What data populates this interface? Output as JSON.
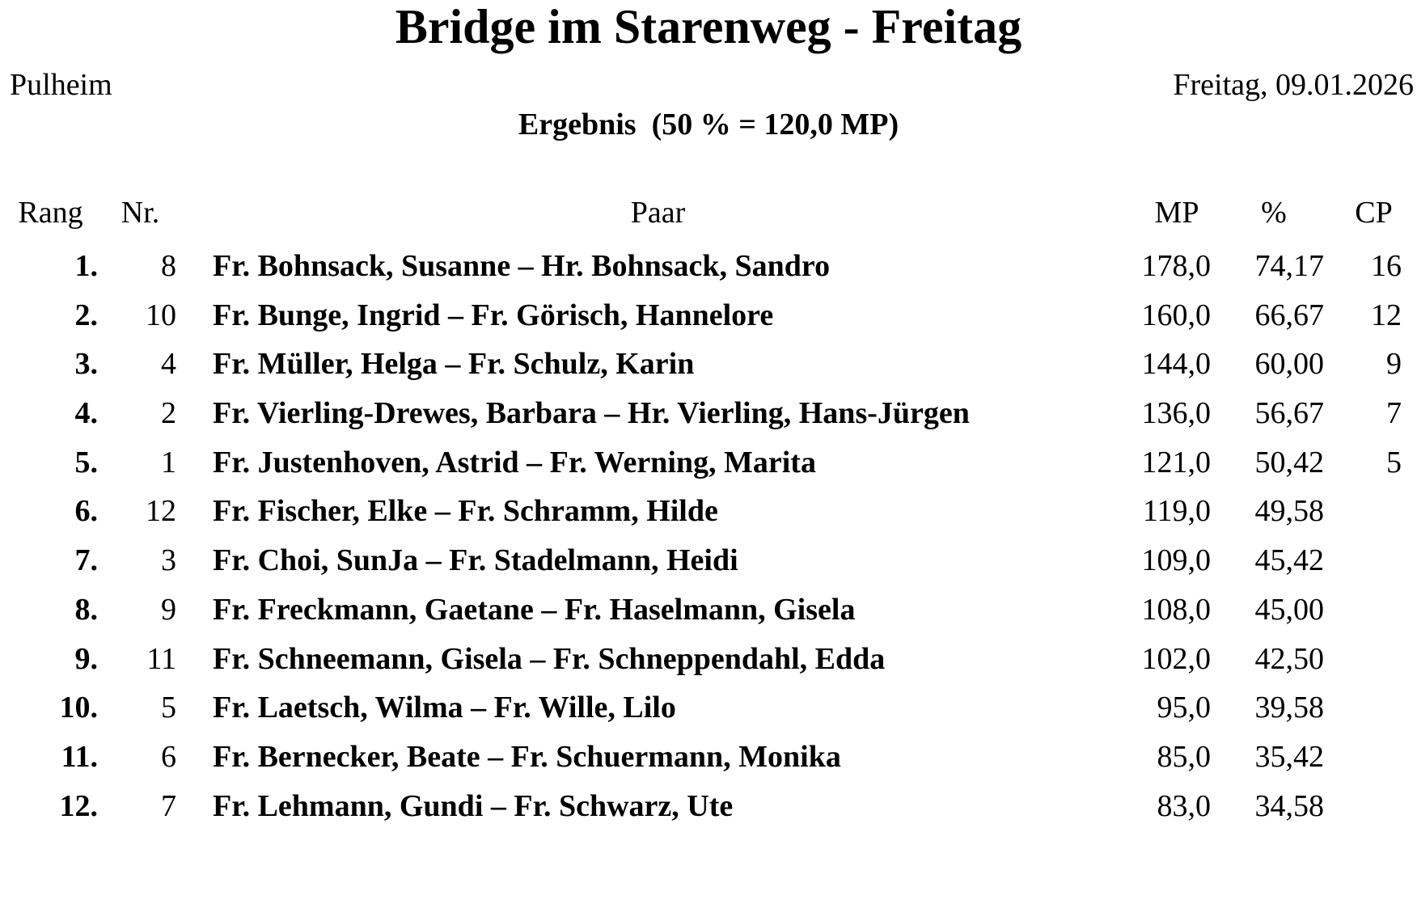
{
  "page": {
    "title": "Bridge im Starenweg - Freitag",
    "location": "Pulheim",
    "date": "Freitag, 09.01.2026",
    "subtitle": "Ergebnis  (50 % = 120,0 MP)"
  },
  "table": {
    "headers": {
      "rank": "Rang",
      "nr": "Nr.",
      "pair": "Paar",
      "mp": "MP",
      "pct": "%",
      "cp": "CP"
    },
    "rows": [
      {
        "rank": "1.",
        "nr": "8",
        "pair": "Fr. Bohnsack, Susanne – Hr. Bohnsack, Sandro",
        "mp": "178,0",
        "pct": "74,17",
        "cp": "16"
      },
      {
        "rank": "2.",
        "nr": "10",
        "pair": "Fr. Bunge, Ingrid – Fr. Görisch, Hannelore",
        "mp": "160,0",
        "pct": "66,67",
        "cp": "12"
      },
      {
        "rank": "3.",
        "nr": "4",
        "pair": "Fr. Müller, Helga – Fr. Schulz, Karin",
        "mp": "144,0",
        "pct": "60,00",
        "cp": "9"
      },
      {
        "rank": "4.",
        "nr": "2",
        "pair": "Fr. Vierling-Drewes, Barbara – Hr. Vierling, Hans-Jürgen",
        "mp": "136,0",
        "pct": "56,67",
        "cp": "7"
      },
      {
        "rank": "5.",
        "nr": "1",
        "pair": "Fr. Justenhoven, Astrid – Fr. Werning, Marita",
        "mp": "121,0",
        "pct": "50,42",
        "cp": "5"
      },
      {
        "rank": "6.",
        "nr": "12",
        "pair": "Fr. Fischer, Elke – Fr. Schramm, Hilde",
        "mp": "119,0",
        "pct": "49,58",
        "cp": ""
      },
      {
        "rank": "7.",
        "nr": "3",
        "pair": "Fr. Choi, SunJa – Fr. Stadelmann, Heidi",
        "mp": "109,0",
        "pct": "45,42",
        "cp": ""
      },
      {
        "rank": "8.",
        "nr": "9",
        "pair": "Fr. Freckmann, Gaetane – Fr. Haselmann, Gisela",
        "mp": "108,0",
        "pct": "45,00",
        "cp": ""
      },
      {
        "rank": "9.",
        "nr": "11",
        "pair": "Fr. Schneemann, Gisela – Fr. Schneppendahl, Edda",
        "mp": "102,0",
        "pct": "42,50",
        "cp": ""
      },
      {
        "rank": "10.",
        "nr": "5",
        "pair": "Fr. Laetsch, Wilma – Fr. Wille, Lilo",
        "mp": "95,0",
        "pct": "39,58",
        "cp": ""
      },
      {
        "rank": "11.",
        "nr": "6",
        "pair": "Fr. Bernecker, Beate – Fr. Schuermann, Monika",
        "mp": "85,0",
        "pct": "35,42",
        "cp": ""
      },
      {
        "rank": "12.",
        "nr": "7",
        "pair": "Fr. Lehmann, Gundi – Fr. Schwarz, Ute",
        "mp": "83,0",
        "pct": "34,58",
        "cp": ""
      }
    ]
  }
}
